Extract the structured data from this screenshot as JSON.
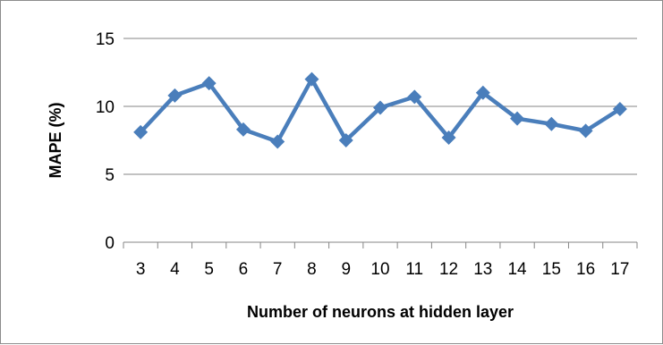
{
  "chart_data": {
    "type": "line",
    "title": "",
    "xlabel": "Number of neurons at hidden layer",
    "ylabel": "MAPE (%)",
    "x": [
      3,
      4,
      5,
      6,
      7,
      8,
      9,
      10,
      11,
      12,
      13,
      14,
      15,
      16,
      17
    ],
    "series": [
      {
        "values": [
          8.1,
          10.8,
          11.7,
          8.3,
          7.4,
          12.0,
          7.5,
          9.9,
          10.7,
          7.7,
          11.0,
          9.1,
          8.7,
          8.2,
          9.8
        ]
      }
    ],
    "ylim": [
      0,
      15
    ],
    "yticks": [
      0,
      5,
      10,
      15
    ],
    "grid": "horizontal",
    "legend": "none",
    "line_color": "#4a7ebb",
    "grid_color": "#868686"
  }
}
